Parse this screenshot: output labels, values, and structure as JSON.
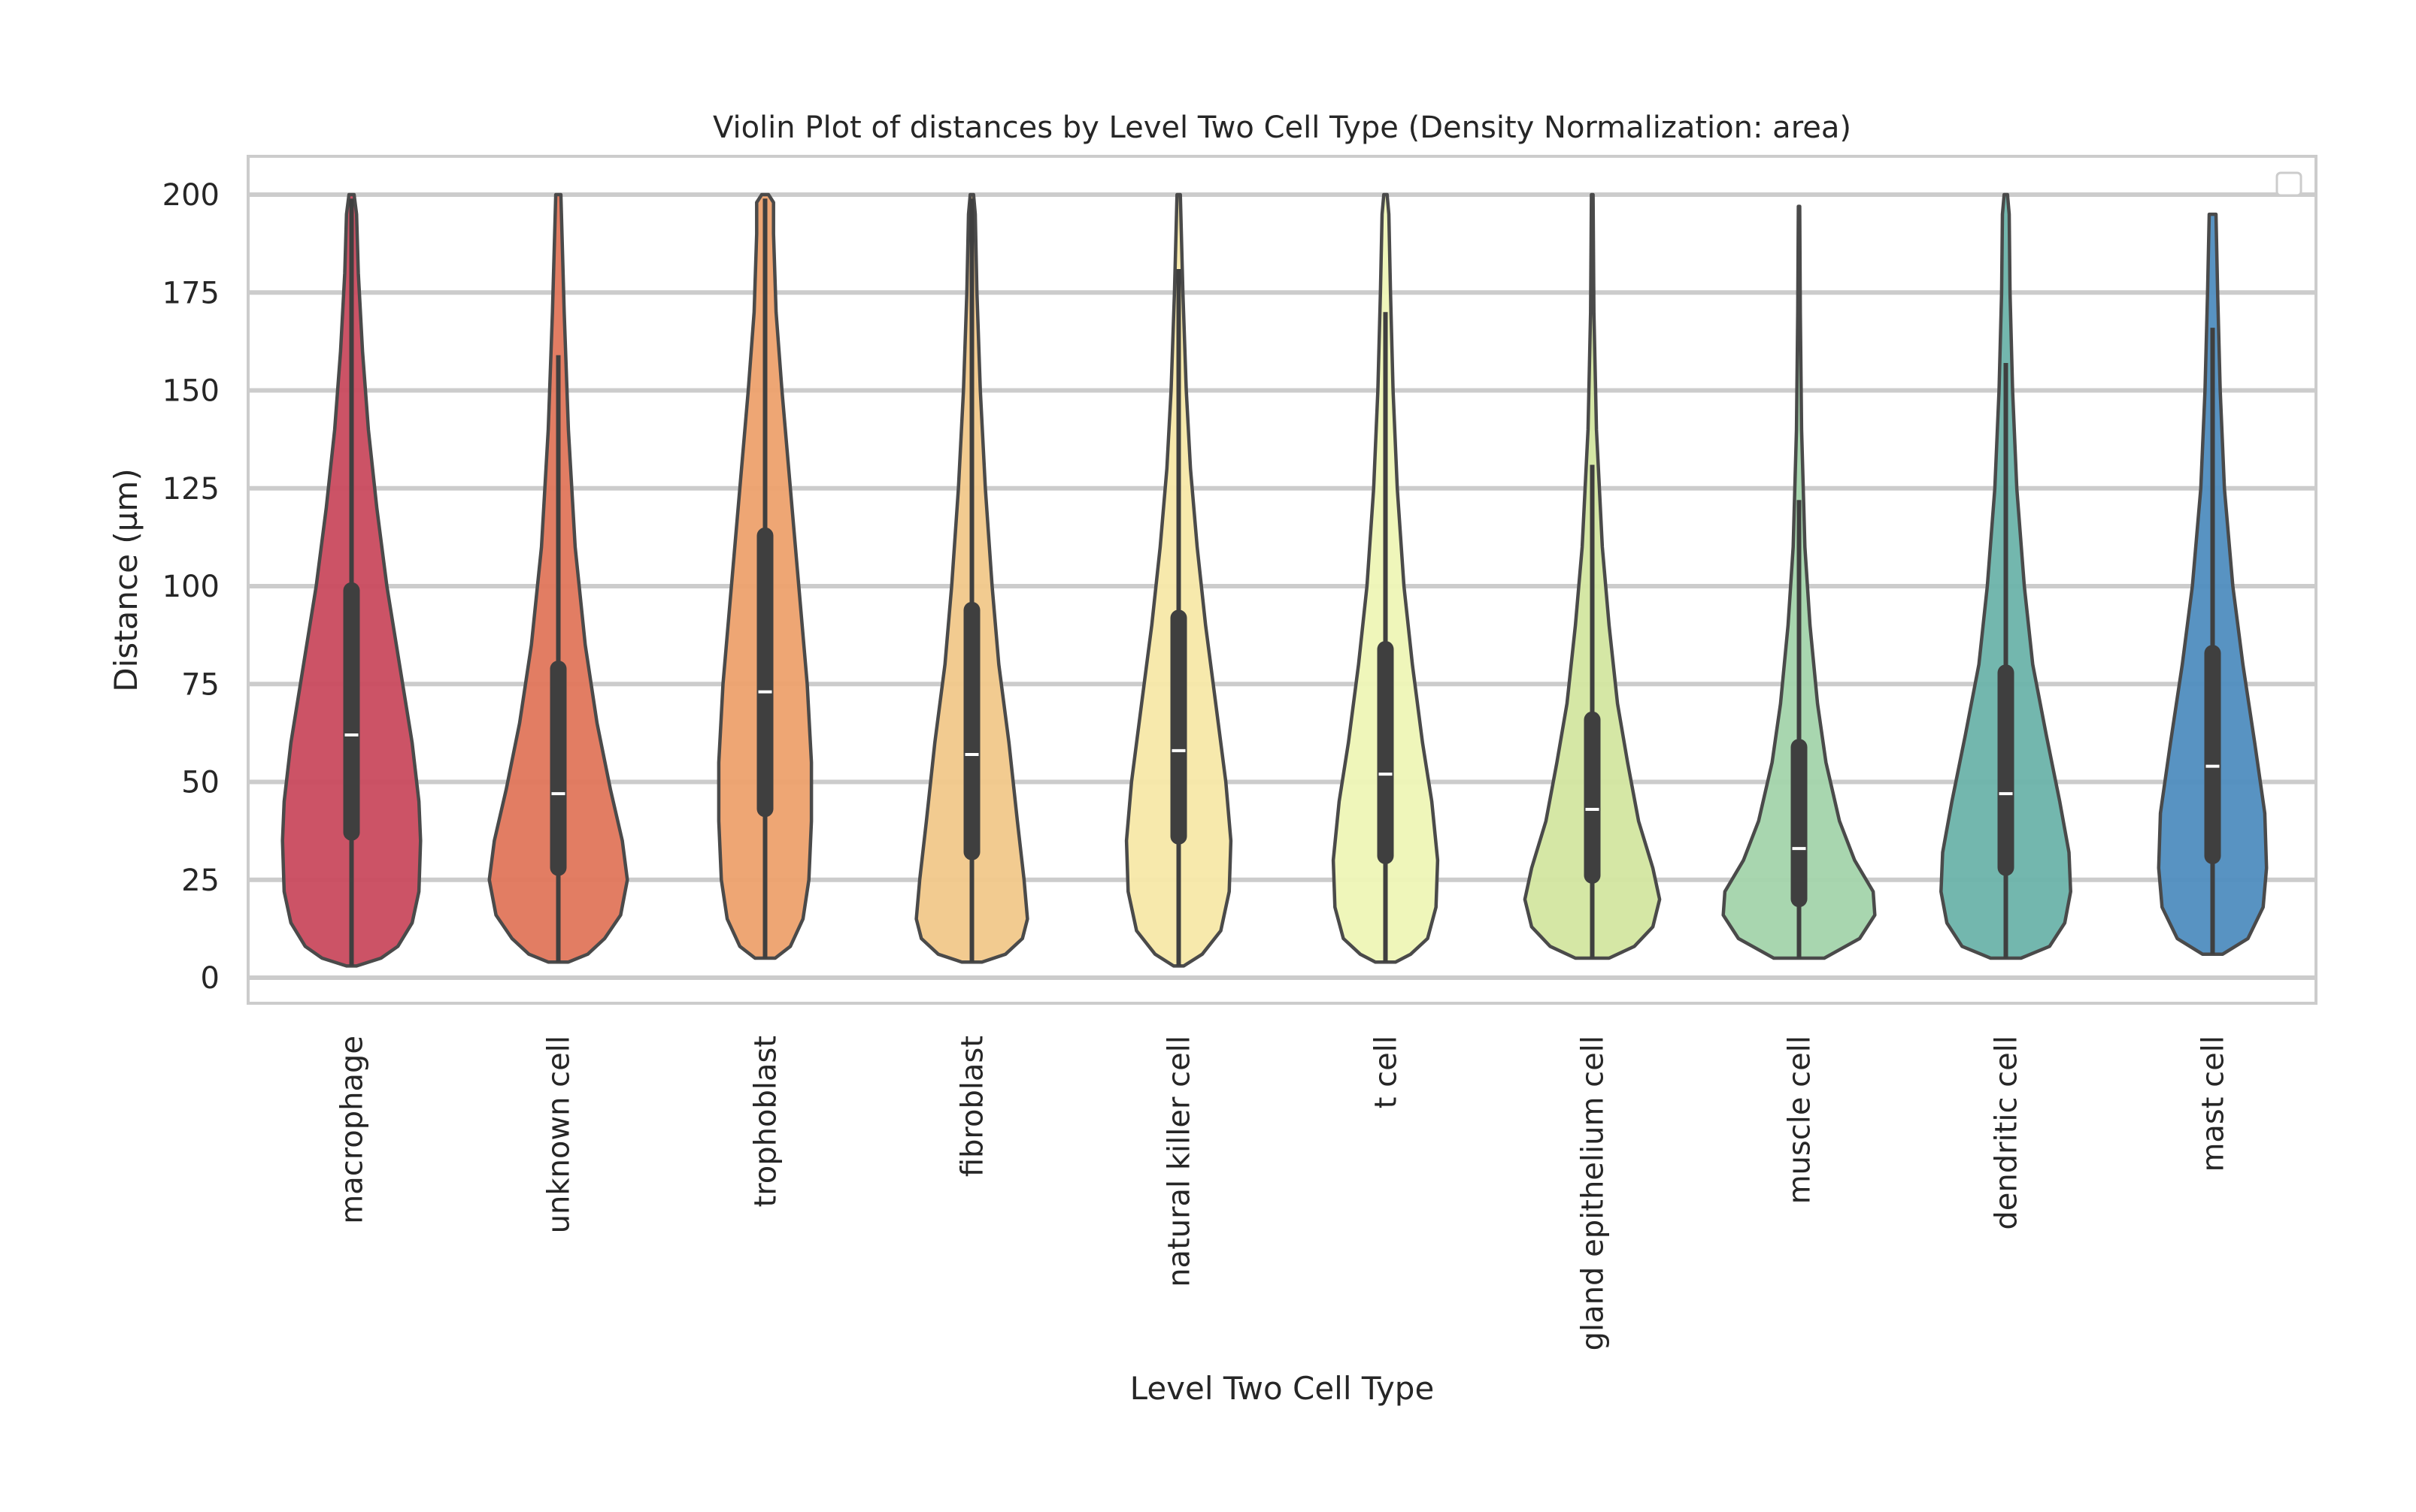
{
  "chart_data": {
    "type": "violin",
    "title": "Violin Plot of distances by Level Two Cell Type (Density Normalization: area)",
    "xlabel": "Level Two Cell Type",
    "ylabel": "Distance (µm)",
    "ylim": [
      -6,
      210
    ],
    "yticks": [
      0,
      25,
      50,
      75,
      100,
      125,
      150,
      175,
      200
    ],
    "grid": "horizontal",
    "legend": "top-right (empty)",
    "categories": [
      "macrophage",
      "unknown cell",
      "trophoblast",
      "fibroblast",
      "natural killer cell",
      "t cell",
      "gland epithelium cell",
      "muscle cell",
      "dendritic cell",
      "mast cell"
    ],
    "series": [
      {
        "category": "macrophage",
        "color": "#c94a5e",
        "min": 3,
        "max": 200,
        "q1": 35,
        "median": 62,
        "q3": 101,
        "whisker_high": 199,
        "profile": [
          [
            3,
            0.06
          ],
          [
            5,
            0.35
          ],
          [
            8,
            0.55
          ],
          [
            14,
            0.72
          ],
          [
            22,
            0.8
          ],
          [
            35,
            0.82
          ],
          [
            45,
            0.8
          ],
          [
            60,
            0.72
          ],
          [
            80,
            0.57
          ],
          [
            100,
            0.42
          ],
          [
            120,
            0.3
          ],
          [
            140,
            0.2
          ],
          [
            160,
            0.13
          ],
          [
            180,
            0.08
          ],
          [
            195,
            0.06
          ],
          [
            200,
            0.03
          ]
        ]
      },
      {
        "category": "unknown cell",
        "color": "#e0765b",
        "min": 4,
        "max": 200,
        "q1": 26,
        "median": 47,
        "q3": 81,
        "whisker_high": 159,
        "profile": [
          [
            4,
            0.12
          ],
          [
            6,
            0.35
          ],
          [
            10,
            0.55
          ],
          [
            16,
            0.74
          ],
          [
            25,
            0.82
          ],
          [
            35,
            0.76
          ],
          [
            48,
            0.62
          ],
          [
            65,
            0.46
          ],
          [
            85,
            0.32
          ],
          [
            110,
            0.2
          ],
          [
            140,
            0.12
          ],
          [
            170,
            0.07
          ],
          [
            200,
            0.03
          ]
        ]
      },
      {
        "category": "trophoblast",
        "color": "#eda16d",
        "min": 5,
        "max": 200,
        "q1": 41,
        "median": 73,
        "q3": 115,
        "whisker_high": 199,
        "profile": [
          [
            5,
            0.12
          ],
          [
            8,
            0.3
          ],
          [
            15,
            0.45
          ],
          [
            25,
            0.52
          ],
          [
            40,
            0.55
          ],
          [
            55,
            0.55
          ],
          [
            75,
            0.5
          ],
          [
            100,
            0.4
          ],
          [
            125,
            0.3
          ],
          [
            150,
            0.2
          ],
          [
            170,
            0.13
          ],
          [
            190,
            0.1
          ],
          [
            198,
            0.1
          ],
          [
            200,
            0.04
          ]
        ]
      },
      {
        "category": "fibroblast",
        "color": "#f1c88a",
        "min": 4,
        "max": 200,
        "q1": 30,
        "median": 57,
        "q3": 96,
        "whisker_high": 199,
        "profile": [
          [
            4,
            0.12
          ],
          [
            6,
            0.4
          ],
          [
            10,
            0.6
          ],
          [
            15,
            0.66
          ],
          [
            25,
            0.62
          ],
          [
            40,
            0.54
          ],
          [
            60,
            0.44
          ],
          [
            80,
            0.32
          ],
          [
            100,
            0.24
          ],
          [
            125,
            0.16
          ],
          [
            150,
            0.1
          ],
          [
            175,
            0.06
          ],
          [
            195,
            0.04
          ],
          [
            200,
            0.02
          ]
        ]
      },
      {
        "category": "natural killer cell",
        "color": "#f7e8a8",
        "min": 3,
        "max": 200,
        "q1": 34,
        "median": 58,
        "q3": 94,
        "whisker_high": 181,
        "profile": [
          [
            3,
            0.06
          ],
          [
            6,
            0.28
          ],
          [
            12,
            0.5
          ],
          [
            22,
            0.6
          ],
          [
            35,
            0.62
          ],
          [
            50,
            0.56
          ],
          [
            70,
            0.44
          ],
          [
            90,
            0.32
          ],
          [
            110,
            0.22
          ],
          [
            130,
            0.14
          ],
          [
            150,
            0.09
          ],
          [
            175,
            0.05
          ],
          [
            200,
            0.02
          ]
        ]
      },
      {
        "category": "t cell",
        "color": "#eef5b6",
        "min": 4,
        "max": 200,
        "q1": 29,
        "median": 52,
        "q3": 86,
        "whisker_high": 170,
        "profile": [
          [
            4,
            0.12
          ],
          [
            6,
            0.3
          ],
          [
            10,
            0.5
          ],
          [
            18,
            0.6
          ],
          [
            30,
            0.62
          ],
          [
            45,
            0.55
          ],
          [
            60,
            0.44
          ],
          [
            80,
            0.32
          ],
          [
            100,
            0.22
          ],
          [
            125,
            0.14
          ],
          [
            150,
            0.09
          ],
          [
            175,
            0.06
          ],
          [
            195,
            0.04
          ],
          [
            200,
            0.02
          ]
        ]
      },
      {
        "category": "gland epithelium cell",
        "color": "#d3e6a0",
        "min": 5,
        "max": 200,
        "q1": 24,
        "median": 43,
        "q3": 68,
        "whisker_high": 131,
        "profile": [
          [
            5,
            0.2
          ],
          [
            8,
            0.5
          ],
          [
            13,
            0.72
          ],
          [
            20,
            0.8
          ],
          [
            28,
            0.72
          ],
          [
            40,
            0.55
          ],
          [
            55,
            0.42
          ],
          [
            70,
            0.3
          ],
          [
            90,
            0.2
          ],
          [
            110,
            0.12
          ],
          [
            140,
            0.05
          ],
          [
            170,
            0.02
          ],
          [
            200,
            0.01
          ]
        ]
      },
      {
        "category": "muscle cell",
        "color": "#a3d4ab",
        "min": 5,
        "max": 197,
        "q1": 18,
        "median": 33,
        "q3": 61,
        "whisker_high": 122,
        "profile": [
          [
            5,
            0.3
          ],
          [
            10,
            0.72
          ],
          [
            16,
            0.9
          ],
          [
            22,
            0.88
          ],
          [
            30,
            0.66
          ],
          [
            40,
            0.48
          ],
          [
            55,
            0.32
          ],
          [
            70,
            0.22
          ],
          [
            90,
            0.13
          ],
          [
            110,
            0.07
          ],
          [
            140,
            0.03
          ],
          [
            170,
            0.015
          ],
          [
            197,
            0.008
          ]
        ]
      },
      {
        "category": "dendritic cell",
        "color": "#6cb3aa",
        "min": 5,
        "max": 200,
        "q1": 26,
        "median": 47,
        "q3": 80,
        "whisker_high": 157,
        "profile": [
          [
            5,
            0.18
          ],
          [
            8,
            0.52
          ],
          [
            14,
            0.7
          ],
          [
            22,
            0.77
          ],
          [
            32,
            0.75
          ],
          [
            45,
            0.64
          ],
          [
            62,
            0.48
          ],
          [
            80,
            0.32
          ],
          [
            100,
            0.22
          ],
          [
            125,
            0.13
          ],
          [
            150,
            0.08
          ],
          [
            175,
            0.05
          ],
          [
            195,
            0.04
          ],
          [
            200,
            0.02
          ]
        ]
      },
      {
        "category": "mast cell",
        "color": "#4f8dbf",
        "min": 6,
        "max": 195,
        "q1": 29,
        "median": 54,
        "q3": 85,
        "whisker_high": 166,
        "profile": [
          [
            6,
            0.12
          ],
          [
            10,
            0.42
          ],
          [
            18,
            0.6
          ],
          [
            28,
            0.64
          ],
          [
            42,
            0.62
          ],
          [
            60,
            0.5
          ],
          [
            80,
            0.36
          ],
          [
            100,
            0.24
          ],
          [
            125,
            0.14
          ],
          [
            150,
            0.09
          ],
          [
            175,
            0.06
          ],
          [
            195,
            0.04
          ]
        ]
      }
    ]
  }
}
